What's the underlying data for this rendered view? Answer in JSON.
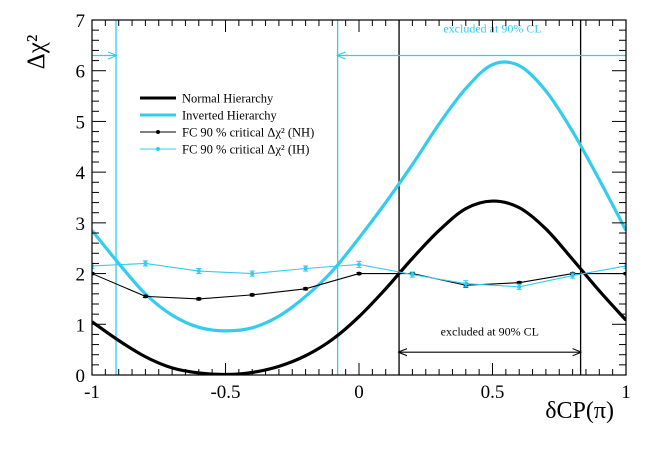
{
  "chart_data": {
    "type": "line",
    "xlim": [
      -1,
      1
    ],
    "ylim": [
      0,
      7
    ],
    "x_ticks": [
      -1,
      -0.5,
      0,
      0.5,
      1
    ],
    "x_tick_labels": [
      "-1",
      "-0.5",
      "0",
      "0.5",
      "1"
    ],
    "y_ticks": [
      0,
      1,
      2,
      3,
      4,
      5,
      6,
      7
    ],
    "y_tick_labels": [
      "0",
      "1",
      "2",
      "3",
      "4",
      "5",
      "6",
      "7"
    ],
    "ylabel": "Δχ²",
    "xlabel": "δCP(π)",
    "colors": {
      "nh": "#000000",
      "ih": "#33ccee"
    },
    "series": [
      {
        "name": "Normal Hierarchy",
        "style": "thick-line",
        "x": [
          -1,
          -0.9,
          -0.8,
          -0.7,
          -0.6,
          -0.5,
          -0.4,
          -0.3,
          -0.2,
          -0.1,
          0,
          0.1,
          0.2,
          0.3,
          0.4,
          0.5,
          0.6,
          0.7,
          0.8,
          0.9,
          1
        ],
        "y": [
          1.05,
          0.68,
          0.36,
          0.14,
          0.04,
          0.01,
          0.05,
          0.17,
          0.38,
          0.7,
          1.15,
          1.7,
          2.3,
          2.85,
          3.28,
          3.43,
          3.3,
          2.88,
          2.28,
          1.66,
          1.08
        ]
      },
      {
        "name": "Inverted Hierarchy",
        "style": "thick-line",
        "x": [
          -1,
          -0.9,
          -0.8,
          -0.7,
          -0.6,
          -0.5,
          -0.4,
          -0.3,
          -0.2,
          -0.1,
          0,
          0.1,
          0.2,
          0.3,
          0.4,
          0.5,
          0.6,
          0.7,
          0.8,
          0.9,
          1
        ],
        "y": [
          2.85,
          2.2,
          1.6,
          1.18,
          0.94,
          0.87,
          0.93,
          1.16,
          1.55,
          2.05,
          2.7,
          3.4,
          4.15,
          4.95,
          5.65,
          6.12,
          6.1,
          5.6,
          4.8,
          3.85,
          2.85
        ]
      },
      {
        "name": "FC 90 % critical Δχ² (NH)",
        "style": "points-line",
        "x": [
          -1,
          -0.8,
          -0.6,
          -0.4,
          -0.2,
          0,
          0.2,
          0.4,
          0.6,
          0.8,
          1
        ],
        "y": [
          2.0,
          1.55,
          1.5,
          1.58,
          1.7,
          2.0,
          2.0,
          1.77,
          1.82,
          2.0,
          2.0
        ],
        "err": [
          0.02,
          0.02,
          0.02,
          0.02,
          0.02,
          0.02,
          0.02,
          0.04,
          0.02,
          0.02,
          0.02
        ]
      },
      {
        "name": "FC 90 % critical Δχ² (IH)",
        "style": "points-line",
        "x": [
          -1,
          -0.8,
          -0.6,
          -0.4,
          -0.2,
          0,
          0.2,
          0.4,
          0.6,
          0.8,
          1
        ],
        "y": [
          2.15,
          2.2,
          2.05,
          2.0,
          2.1,
          2.18,
          1.98,
          1.8,
          1.74,
          1.96,
          2.15
        ],
        "err": [
          0.05,
          0.05,
          0.05,
          0.05,
          0.05,
          0.06,
          0.05,
          0.06,
          0.05,
          0.05,
          0.05
        ]
      }
    ],
    "legend": {
      "placement": "upper-left",
      "entries": [
        {
          "label": "Normal Hierarchy",
          "series": "nh",
          "style": "thick-line"
        },
        {
          "label": "Inverted Hierarchy",
          "series": "ih",
          "style": "thick-line"
        },
        {
          "label": "FC 90 % critical Δχ² (NH)",
          "series": "nh",
          "style": "points-line"
        },
        {
          "label": "FC 90 % critical Δχ² (IH)",
          "series": "ih",
          "style": "points-line"
        }
      ]
    },
    "annotations": [
      {
        "name": "ih-excluded",
        "text": "excluded at 90% CL",
        "color": "#33ccee",
        "bounds_x": [
          -0.91,
          -0.08
        ],
        "arrows_outward_to_x": [
          -1,
          1
        ],
        "arrow_y": 6.3
      },
      {
        "name": "nh-excluded",
        "text": "excluded at 90% CL",
        "color": "#000000",
        "bounds_x": [
          0.15,
          0.83
        ],
        "arrows_inward": true,
        "arrow_y": 0.45
      }
    ]
  }
}
